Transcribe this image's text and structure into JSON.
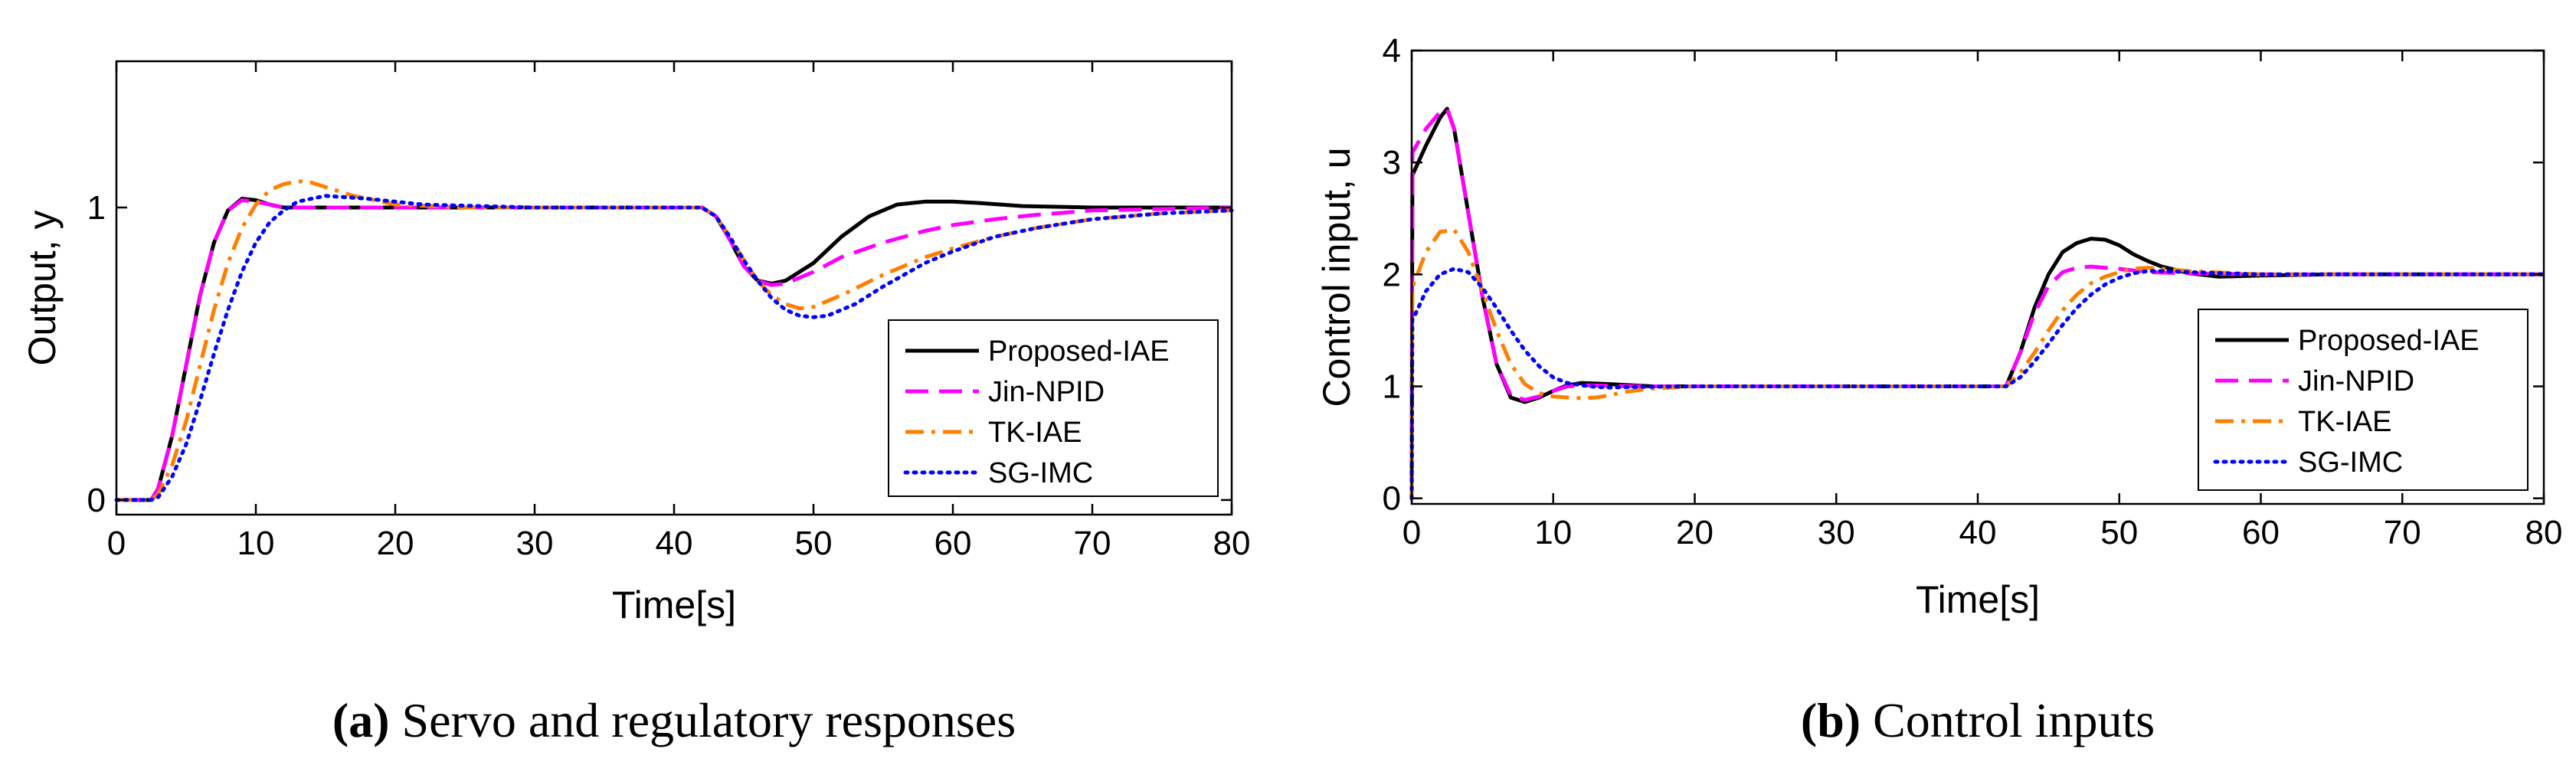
{
  "chart_data": [
    {
      "type": "line",
      "ylabel": "Output, y",
      "xlabel": "Time[s]",
      "caption_label": "(a)",
      "caption_text": " Servo and regulatory responses",
      "xlim": [
        0,
        80
      ],
      "ylim": [
        -0.05,
        1.5
      ],
      "xticks": [
        0,
        10,
        20,
        30,
        40,
        50,
        60,
        70,
        80
      ],
      "yticks": [
        0,
        1
      ],
      "legend_position": "bottom-right",
      "series": [
        {
          "name": "Proposed-IAE",
          "color": "#000000",
          "dash": "solid",
          "x": [
            0,
            2.5,
            3,
            4,
            5,
            6,
            7,
            8,
            9,
            10,
            11,
            12,
            15,
            20,
            30,
            42,
            43,
            44,
            45,
            46,
            47,
            48,
            50,
            52,
            54,
            56,
            58,
            60,
            62,
            65,
            70,
            75,
            80
          ],
          "y": [
            0,
            0,
            0.04,
            0.22,
            0.46,
            0.7,
            0.88,
            0.99,
            1.03,
            1.025,
            1.01,
            1.0,
            1.0,
            1.0,
            1.0,
            1.0,
            0.97,
            0.89,
            0.8,
            0.75,
            0.74,
            0.75,
            0.81,
            0.9,
            0.97,
            1.01,
            1.02,
            1.02,
            1.015,
            1.005,
            1.0,
            1.0,
            1.0
          ]
        },
        {
          "name": "Jin-NPID",
          "color": "#ff00ff",
          "dash": "long",
          "x": [
            0,
            2.5,
            3,
            4,
            5,
            6,
            7,
            8,
            9,
            10,
            11,
            12,
            15,
            20,
            30,
            42,
            43,
            44,
            45,
            46,
            47,
            48,
            50,
            52,
            55,
            58,
            60,
            63,
            66,
            70,
            75,
            80
          ],
          "y": [
            0,
            0,
            0.04,
            0.22,
            0.46,
            0.7,
            0.88,
            0.99,
            1.025,
            1.02,
            1.01,
            1.0,
            1.0,
            1.0,
            1.0,
            1.0,
            0.97,
            0.89,
            0.8,
            0.75,
            0.735,
            0.74,
            0.78,
            0.83,
            0.88,
            0.92,
            0.94,
            0.96,
            0.975,
            0.99,
            0.995,
            1.0
          ]
        },
        {
          "name": "TK-IAE",
          "color": "#ff7f00",
          "dash": "dashdot",
          "x": [
            0,
            2.5,
            3,
            4,
            5,
            6,
            7,
            8,
            9,
            10,
            11,
            12,
            13,
            14,
            15,
            17,
            20,
            25,
            30,
            42,
            43,
            44,
            45,
            46,
            47,
            48,
            49,
            50,
            52,
            55,
            58,
            60,
            63,
            66,
            70,
            75,
            80
          ],
          "y": [
            0,
            0,
            0.02,
            0.12,
            0.27,
            0.46,
            0.65,
            0.81,
            0.93,
            1.01,
            1.06,
            1.08,
            1.09,
            1.085,
            1.07,
            1.04,
            1.01,
            1.0,
            1.0,
            1.0,
            0.97,
            0.9,
            0.82,
            0.75,
            0.7,
            0.67,
            0.655,
            0.66,
            0.7,
            0.77,
            0.83,
            0.86,
            0.9,
            0.93,
            0.96,
            0.98,
            0.99
          ]
        },
        {
          "name": "SG-IMC",
          "color": "#0000ff",
          "dash": "dotted",
          "x": [
            0,
            2.5,
            3,
            4,
            5,
            6,
            7,
            8,
            9,
            10,
            11,
            12,
            13,
            15,
            18,
            22,
            30,
            42,
            43,
            44,
            45,
            46,
            47,
            48,
            49,
            50,
            51,
            53,
            55,
            58,
            60,
            63,
            66,
            70,
            75,
            80
          ],
          "y": [
            0,
            0,
            0.01,
            0.08,
            0.19,
            0.34,
            0.5,
            0.65,
            0.78,
            0.88,
            0.95,
            0.99,
            1.02,
            1.04,
            1.03,
            1.01,
            1.0,
            1.0,
            0.97,
            0.9,
            0.82,
            0.75,
            0.69,
            0.65,
            0.63,
            0.625,
            0.63,
            0.67,
            0.73,
            0.81,
            0.85,
            0.9,
            0.93,
            0.96,
            0.98,
            0.99
          ]
        }
      ]
    },
    {
      "type": "line",
      "ylabel": "Control input, u",
      "xlabel": "Time[s]",
      "caption_label": "(b)",
      "caption_text": " Control inputs",
      "xlim": [
        0,
        80
      ],
      "ylim": [
        -0.05,
        4
      ],
      "xticks": [
        0,
        10,
        20,
        30,
        40,
        50,
        60,
        70,
        80
      ],
      "yticks": [
        0,
        1,
        2,
        3,
        4
      ],
      "legend_position": "bottom-right",
      "series": [
        {
          "name": "Proposed-IAE",
          "color": "#000000",
          "dash": "solid",
          "x": [
            0,
            0.05,
            0.1,
            1,
            2,
            2.5,
            3,
            4,
            5,
            6,
            7,
            8,
            9,
            10,
            11,
            12,
            14,
            17,
            20,
            30,
            42,
            43,
            44,
            45,
            46,
            47,
            48,
            49,
            50,
            51,
            52,
            53,
            55,
            57,
            60,
            65,
            70,
            80
          ],
          "y": [
            0,
            2.9,
            2.9,
            3.15,
            3.4,
            3.48,
            3.3,
            2.55,
            1.8,
            1.2,
            0.9,
            0.86,
            0.9,
            0.96,
            1.01,
            1.03,
            1.02,
            1.0,
            1.0,
            1.0,
            1.0,
            1.3,
            1.7,
            2.0,
            2.2,
            2.28,
            2.32,
            2.31,
            2.26,
            2.18,
            2.12,
            2.07,
            2.01,
            1.98,
            1.99,
            2.0,
            2.0,
            2.0
          ]
        },
        {
          "name": "Jin-NPID",
          "color": "#ff00ff",
          "dash": "long",
          "x": [
            0,
            0.05,
            0.1,
            1,
            2,
            2.5,
            3,
            4,
            5,
            6,
            7,
            8,
            9,
            10,
            11,
            12,
            14,
            17,
            20,
            30,
            42,
            43,
            44,
            45,
            46,
            47,
            48,
            49,
            50,
            52,
            55,
            60,
            65,
            70,
            80
          ],
          "y": [
            0,
            3.1,
            3.1,
            3.3,
            3.45,
            3.48,
            3.3,
            2.55,
            1.8,
            1.2,
            0.92,
            0.88,
            0.91,
            0.96,
            1.0,
            1.01,
            1.005,
            1.0,
            1.0,
            1.0,
            1.0,
            1.3,
            1.65,
            1.9,
            2.02,
            2.06,
            2.07,
            2.06,
            2.05,
            2.02,
            2.01,
            2.0,
            2.0,
            2.0,
            2.0
          ]
        },
        {
          "name": "TK-IAE",
          "color": "#ff7f00",
          "dash": "dashdot",
          "x": [
            0,
            0.05,
            0.1,
            1,
            2,
            3,
            4,
            5,
            6,
            7,
            8,
            9,
            10,
            11,
            12,
            13,
            14,
            15,
            17,
            20,
            25,
            30,
            42,
            43,
            44,
            45,
            46,
            47,
            48,
            49,
            50,
            51,
            52,
            53,
            55,
            60,
            65,
            70,
            80
          ],
          "y": [
            0,
            1.9,
            1.9,
            2.2,
            2.38,
            2.4,
            2.2,
            1.85,
            1.5,
            1.2,
            1.02,
            0.94,
            0.91,
            0.9,
            0.895,
            0.9,
            0.92,
            0.95,
            0.98,
            1.0,
            1.0,
            1.0,
            1.0,
            1.12,
            1.3,
            1.5,
            1.68,
            1.82,
            1.92,
            1.98,
            2.02,
            2.05,
            2.06,
            2.05,
            2.03,
            2.0,
            2.0,
            2.0,
            2.0
          ]
        },
        {
          "name": "SG-IMC",
          "color": "#0000ff",
          "dash": "dotted",
          "x": [
            0,
            0.05,
            0.1,
            1,
            2,
            3,
            4,
            5,
            6,
            7,
            8,
            9,
            10,
            11,
            12,
            13,
            14,
            16,
            20,
            30,
            42,
            43,
            44,
            45,
            46,
            47,
            48,
            49,
            50,
            51,
            52,
            53,
            55,
            60,
            65,
            70,
            80
          ],
          "y": [
            0,
            1.6,
            1.6,
            1.85,
            2.0,
            2.05,
            2.02,
            1.88,
            1.7,
            1.5,
            1.32,
            1.18,
            1.08,
            1.03,
            1.01,
            0.995,
            0.99,
            0.995,
            1.0,
            1.0,
            1.0,
            1.08,
            1.22,
            1.38,
            1.55,
            1.7,
            1.82,
            1.91,
            1.97,
            2.01,
            2.03,
            2.03,
            2.02,
            2.0,
            2.0,
            2.0,
            2.0
          ]
        }
      ]
    }
  ]
}
